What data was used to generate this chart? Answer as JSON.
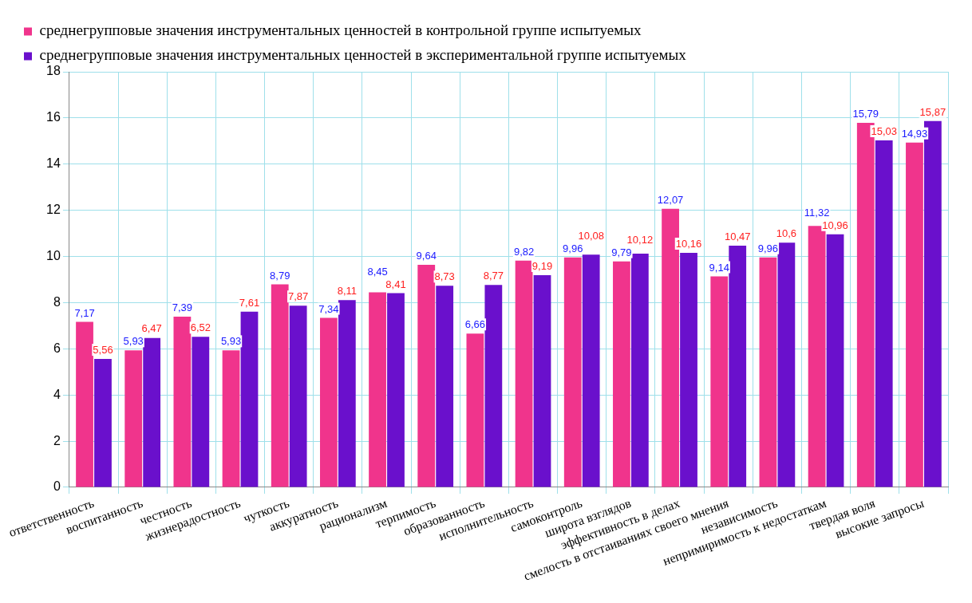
{
  "chart_data": {
    "type": "bar",
    "categories": [
      "ответственность",
      "воспитанность",
      "честность",
      "жизнерадостность",
      "чуткость",
      "аккуратность",
      "рационализм",
      "терпимость",
      "образованность",
      "исполнительность",
      "самоконтроль",
      "широта взглядов",
      "эффективность в делах",
      "смелость в отстаиваниях своего мнения",
      "независимость",
      "непримиримость к недостаткам",
      "твердая воля",
      "высокие запросы"
    ],
    "series": [
      {
        "name": "среднегрупповые значения инструментальных ценностей в контрольной группе испытуемых",
        "color": "#f0348c",
        "values": [
          7.17,
          5.93,
          7.39,
          5.93,
          8.79,
          7.34,
          8.45,
          9.64,
          6.66,
          9.82,
          9.96,
          9.79,
          12.07,
          9.14,
          9.96,
          11.32,
          15.79,
          14.93
        ],
        "value_labels": [
          "7,17",
          "5,93",
          "7,39",
          "5,93",
          "8,79",
          "7,34",
          "8,45",
          "9,64",
          "6,66",
          "9,82",
          "9,96",
          "9,79",
          "12,07",
          "9,14",
          "9,96",
          "11,32",
          "15,79",
          "14,93"
        ]
      },
      {
        "name": "среднегрупповые значения инструментальных ценностей в экспериментальной группе испытуемых",
        "color": "#6a10cc",
        "values": [
          5.56,
          6.47,
          6.52,
          7.61,
          7.87,
          8.11,
          8.41,
          8.73,
          8.77,
          9.19,
          10.08,
          10.12,
          10.16,
          10.47,
          10.6,
          10.96,
          15.03,
          15.87
        ],
        "value_labels": [
          "5,56",
          "6,47",
          "6,52",
          "7,61",
          "7,87",
          "8,11",
          "8,41",
          "8,73",
          "8,77",
          "9,19",
          "10,08",
          "10,12",
          "10,16",
          "10,47",
          "10,6",
          "10,96",
          "15,03",
          "15,87"
        ]
      }
    ],
    "ylim": [
      0,
      18
    ],
    "yticks": [
      0,
      2,
      4,
      6,
      8,
      10,
      12,
      14,
      16,
      18
    ],
    "grid": true,
    "legend": "top"
  }
}
